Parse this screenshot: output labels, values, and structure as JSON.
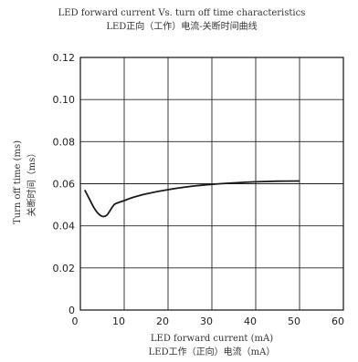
{
  "chart_data": {
    "type": "line",
    "title": "LED forward current Vs. turn off time characteristics",
    "subtitle": "LED正向（工作）电流-关断时间曲线",
    "xlabel": "LED forward current (mA)",
    "xlabel2": "LED工作（正向）电流（mA）",
    "ylabel": "Turn off time (ms)",
    "ylabel2": "关断时间（ms）",
    "xlim": [
      0,
      60
    ],
    "ylim": [
      0,
      0.12
    ],
    "x_ticks": [
      0,
      10,
      20,
      30,
      40,
      50,
      60
    ],
    "x_tick_labels": [
      "0",
      "10",
      "20",
      "30",
      "40",
      "50",
      "60"
    ],
    "y_ticks": [
      0,
      0.02,
      0.04,
      0.06,
      0.08,
      0.1,
      0.12
    ],
    "y_tick_labels": [
      "0",
      "0.02",
      "0.04",
      "0.06",
      "0.08",
      "0.10",
      "0.12"
    ],
    "grid": true,
    "line_color": "#1a1a1a",
    "series": [
      {
        "x": [
          1,
          2,
          3,
          4,
          5,
          6,
          7,
          7.5,
          8,
          10,
          12,
          15,
          20,
          25,
          30,
          35,
          40,
          45,
          50
        ],
        "y": [
          0.057,
          0.053,
          0.049,
          0.046,
          0.0445,
          0.045,
          0.048,
          0.0495,
          0.0505,
          0.052,
          0.0535,
          0.0552,
          0.0572,
          0.0587,
          0.0597,
          0.0604,
          0.0609,
          0.0612,
          0.0613
        ]
      }
    ]
  }
}
